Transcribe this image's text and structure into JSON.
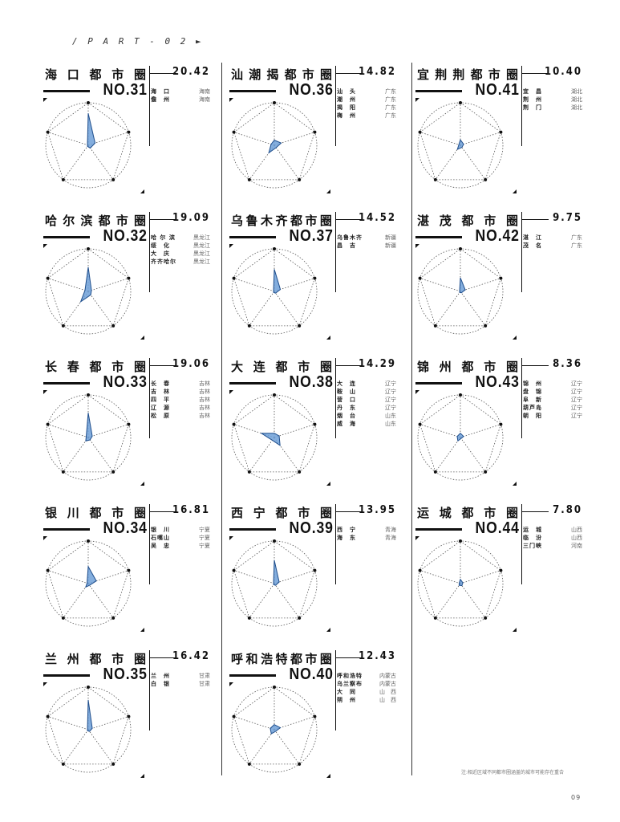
{
  "header": {
    "part_label": "/ P A R T - 0 2 ►"
  },
  "footer": {
    "note": "注:相近区域不同都市圈涵盖的城市可能存在重合",
    "page": "09"
  },
  "chart_data": [
    {
      "type": "radar",
      "title": "海口都市圈",
      "score": "20.42",
      "rank": "NO.31",
      "cities": [
        [
          "海　口",
          "海南"
        ],
        [
          "儋　州",
          "海南"
        ]
      ],
      "values": [
        0.75,
        0.17,
        0.08,
        0.03,
        0.02
      ]
    },
    {
      "type": "radar",
      "title": "汕潮揭都市圈",
      "score": "14.82",
      "rank": "NO.36",
      "cities": [
        [
          "汕　头",
          "广东"
        ],
        [
          "潮　州",
          "广东"
        ],
        [
          "揭　阳",
          "广东"
        ],
        [
          "梅　州",
          "广东"
        ]
      ],
      "values": [
        0.12,
        0.17,
        0.07,
        0.22,
        0.08
      ]
    },
    {
      "type": "radar",
      "title": "宜荆荆都市圈",
      "score": "10.40",
      "rank": "NO.41",
      "cities": [
        [
          "宜　昌",
          "湖北"
        ],
        [
          "荆　州",
          "湖北"
        ],
        [
          "荆　门",
          "湖北"
        ]
      ],
      "values": [
        0.13,
        0.08,
        0.06,
        0.12,
        0.04
      ]
    },
    {
      "type": "radar",
      "title": "哈尔滨都市圈",
      "score": "19.09",
      "rank": "NO.32",
      "cities": [
        [
          "哈 尔 滨",
          "黑龙江"
        ],
        [
          "绥　化",
          "黑龙江"
        ],
        [
          "大　庆",
          "黑龙江"
        ],
        [
          "齐齐哈尔",
          "黑龙江"
        ]
      ],
      "values": [
        0.57,
        0.08,
        0.1,
        0.3,
        0.08
      ]
    },
    {
      "type": "radar",
      "title": "乌鲁木齐都市圈",
      "score": "14.52",
      "rank": "NO.37",
      "cities": [
        [
          "乌鲁木齐",
          "新疆"
        ],
        [
          "昌　吉",
          "新疆"
        ]
      ],
      "values": [
        0.52,
        0.15,
        0.05,
        0.03,
        0.02
      ]
    },
    {
      "type": "radar",
      "title": "湛茂都市圈",
      "score": "9.75",
      "rank": "NO.42",
      "cities": [
        [
          "湛　江",
          "广东"
        ],
        [
          "茂　名",
          "广东"
        ]
      ],
      "values": [
        0.32,
        0.12,
        0.04,
        0.03,
        0.02
      ]
    },
    {
      "type": "radar",
      "title": "长春都市圈",
      "score": "19.06",
      "rank": "NO.33",
      "cities": [
        [
          "长　春",
          "吉林"
        ],
        [
          "吉　林",
          "吉林"
        ],
        [
          "四　平",
          "吉林"
        ],
        [
          "辽　源",
          "吉林"
        ],
        [
          "松　原",
          "吉林"
        ]
      ],
      "values": [
        0.58,
        0.1,
        0.07,
        0.1,
        0.05
      ]
    },
    {
      "type": "radar",
      "title": "大连都市圈",
      "score": "14.29",
      "rank": "NO.38",
      "cities": [
        [
          "大　连",
          "辽宁"
        ],
        [
          "鞍　山",
          "辽宁"
        ],
        [
          "营　口",
          "辽宁"
        ],
        [
          "丹　东",
          "辽宁"
        ],
        [
          "烟　台",
          "山东"
        ],
        [
          "威　海",
          "山东"
        ]
      ],
      "values": [
        0.1,
        0.12,
        0.23,
        0.08,
        0.32
      ]
    },
    {
      "type": "radar",
      "title": "锦州都市圈",
      "score": "8.36",
      "rank": "NO.43",
      "cities": [
        [
          "锦　州",
          "辽宁"
        ],
        [
          "盘　锦",
          "辽宁"
        ],
        [
          "阜　新",
          "辽宁"
        ],
        [
          "葫芦岛",
          "辽宁"
        ],
        [
          "朝　阳",
          "辽宁"
        ]
      ],
      "values": [
        0.1,
        0.08,
        0.03,
        0.1,
        0.08
      ]
    },
    {
      "type": "radar",
      "title": "银川都市圈",
      "score": "16.81",
      "rank": "NO.34",
      "cities": [
        [
          "银　川",
          "宁夏"
        ],
        [
          "石嘴山",
          "宁夏"
        ],
        [
          "吴　忠",
          "宁夏"
        ]
      ],
      "values": [
        0.4,
        0.2,
        0.05,
        0.1,
        0.03
      ]
    },
    {
      "type": "radar",
      "title": "西宁都市圈",
      "score": "13.95",
      "rank": "NO.39",
      "cities": [
        [
          "西　宁",
          "青海"
        ],
        [
          "海　东",
          "青海"
        ]
      ],
      "values": [
        0.55,
        0.12,
        0.05,
        0.03,
        0.02
      ]
    },
    {
      "type": "radar",
      "title": "运城都市圈",
      "score": "7.80",
      "rank": "NO.44",
      "cities": [
        [
          "运　城",
          "山西"
        ],
        [
          "临　汾",
          "山西"
        ],
        [
          "三门峡",
          "河南"
        ]
      ],
      "values": [
        0.1,
        0.06,
        0.06,
        0.05,
        0.03
      ]
    },
    {
      "type": "radar",
      "title": "兰州都市圈",
      "score": "16.42",
      "rank": "NO.35",
      "cities": [
        [
          "兰　州",
          "甘肃"
        ],
        [
          "白　银",
          "甘肃"
        ]
      ],
      "values": [
        0.7,
        0.1,
        0.05,
        0.03,
        0.02
      ]
    },
    {
      "type": "radar",
      "title": "呼和浩特都市圈",
      "score": "12.43",
      "rank": "NO.40",
      "cities": [
        [
          "呼和浩特",
          "内蒙古"
        ],
        [
          "乌兰察布",
          "内蒙古"
        ],
        [
          "大　同",
          "山　西"
        ],
        [
          "朔　州",
          "山　西"
        ]
      ],
      "values": [
        0.12,
        0.15,
        0.05,
        0.12,
        0.1
      ]
    }
  ]
}
